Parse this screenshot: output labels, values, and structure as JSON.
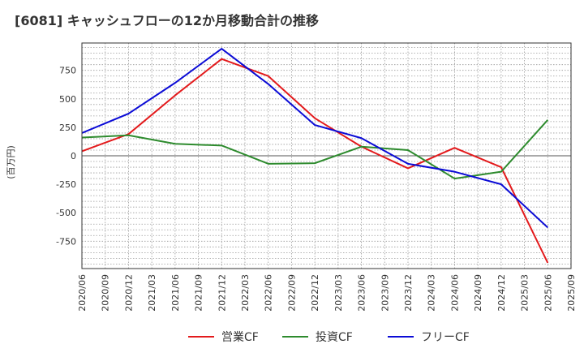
{
  "chart_data": {
    "type": "line",
    "title": "[6081]  キャッシュフローの12か月移動合計の推移",
    "ylabel": "(百万円)",
    "xlabel": "",
    "ylim": [
      -990,
      990
    ],
    "yticks": [
      750,
      500,
      250,
      0,
      -250,
      -500,
      -750
    ],
    "ytick_labels": [
      "750",
      "500",
      "250",
      "0",
      "-250",
      "-500",
      "-750"
    ],
    "categories": [
      "2020/06",
      "2020/09",
      "2020/12",
      "2021/03",
      "2021/06",
      "2021/09",
      "2021/12",
      "2022/03",
      "2022/06",
      "2022/09",
      "2022/12",
      "2023/03",
      "2023/06",
      "2023/09",
      "2023/12",
      "2024/03",
      "2024/06",
      "2024/09",
      "2024/12",
      "2025/03",
      "2025/06",
      "2025/09"
    ],
    "grid": true,
    "legend_position": "bottom",
    "series": [
      {
        "name": "営業CF",
        "color": "#e31a1c",
        "x": [
          "2020/06",
          "2020/12",
          "2021/06",
          "2021/12",
          "2022/06",
          "2022/12",
          "2023/06",
          "2023/12",
          "2024/06",
          "2024/12",
          "2025/06"
        ],
        "values": [
          40,
          190,
          530,
          850,
          700,
          330,
          80,
          -110,
          70,
          -100,
          -940
        ]
      },
      {
        "name": "投資CF",
        "color": "#2e8b2e",
        "x": [
          "2020/06",
          "2020/12",
          "2021/06",
          "2021/12",
          "2022/06",
          "2022/12",
          "2023/06",
          "2023/12",
          "2024/06",
          "2024/12",
          "2025/06"
        ],
        "values": [
          160,
          180,
          105,
          90,
          -70,
          -65,
          80,
          50,
          -200,
          -140,
          315
        ]
      },
      {
        "name": "フリーCF",
        "color": "#0b0bd6",
        "x": [
          "2020/06",
          "2020/12",
          "2021/06",
          "2021/12",
          "2022/06",
          "2022/12",
          "2023/06",
          "2023/12",
          "2024/06",
          "2024/12",
          "2025/06"
        ],
        "values": [
          200,
          370,
          640,
          940,
          630,
          270,
          155,
          -70,
          -140,
          -250,
          -630
        ]
      }
    ]
  }
}
